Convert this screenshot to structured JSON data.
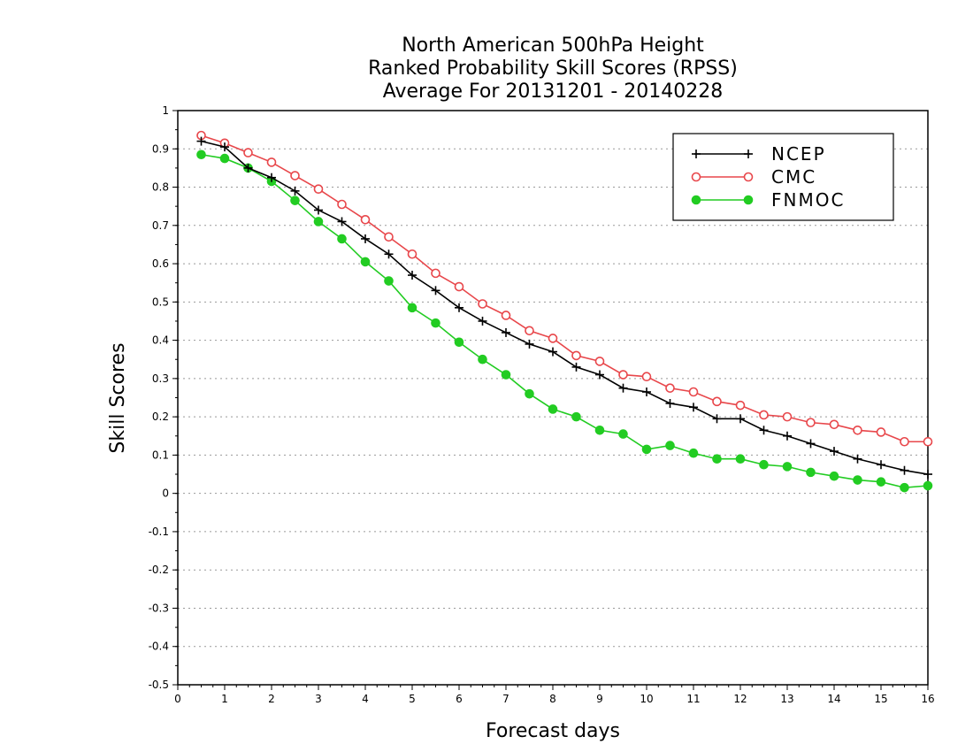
{
  "chart_data": {
    "type": "line",
    "title": [
      "North American 500hPa Height",
      "Ranked Probability Skill Scores (RPSS)",
      "Average For 20131201 - 20140228"
    ],
    "xlabel": "Forecast days",
    "ylabel": "Skill Scores",
    "xlim": [
      0,
      16
    ],
    "ylim": [
      -0.5,
      1
    ],
    "xticks": [
      0,
      1,
      2,
      3,
      4,
      5,
      6,
      7,
      8,
      9,
      10,
      11,
      12,
      13,
      14,
      15,
      16
    ],
    "xtick_labels": [
      "0",
      "1",
      "2",
      "3",
      "4",
      "5",
      "6",
      "7",
      "8",
      "9",
      "10",
      "11",
      "12",
      "13",
      "14",
      "15",
      "16"
    ],
    "yticks": [
      -0.5,
      -0.4,
      -0.3,
      -0.2,
      -0.1,
      0,
      0.1,
      0.2,
      0.3,
      0.4,
      0.5,
      0.6,
      0.7,
      0.8,
      0.9,
      1
    ],
    "ytick_labels": [
      "-0.5",
      "-0.4",
      "-0.3",
      "-0.2",
      "-0.1",
      "0",
      "0.1",
      "0.2",
      "0.3",
      "0.4",
      "0.5",
      "0.6",
      "0.7",
      "0.8",
      "0.9",
      "1"
    ],
    "grid": "horizontal dotted",
    "legend_position": "top-right",
    "x": [
      0.5,
      1,
      1.5,
      2,
      2.5,
      3,
      3.5,
      4,
      4.5,
      5,
      5.5,
      6,
      6.5,
      7,
      7.5,
      8,
      8.5,
      9,
      9.5,
      10,
      10.5,
      11,
      11.5,
      12,
      12.5,
      13,
      13.5,
      14,
      14.5,
      15,
      15.5,
      16
    ],
    "series": [
      {
        "name": "NCEP",
        "color": "#000000",
        "marker": "plus",
        "values": [
          0.92,
          0.905,
          0.85,
          0.825,
          0.79,
          0.74,
          0.71,
          0.665,
          0.625,
          0.57,
          0.53,
          0.485,
          0.45,
          0.42,
          0.39,
          0.37,
          0.33,
          0.31,
          0.275,
          0.265,
          0.235,
          0.225,
          0.195,
          0.195,
          0.165,
          0.15,
          0.13,
          0.11,
          0.09,
          0.075,
          0.06,
          0.05
        ]
      },
      {
        "name": "CMC",
        "color": "#e8474b",
        "marker": "open-circle",
        "values": [
          0.935,
          0.915,
          0.89,
          0.865,
          0.83,
          0.795,
          0.755,
          0.715,
          0.67,
          0.625,
          0.575,
          0.54,
          0.495,
          0.465,
          0.425,
          0.405,
          0.36,
          0.345,
          0.31,
          0.305,
          0.275,
          0.265,
          0.24,
          0.23,
          0.205,
          0.2,
          0.185,
          0.18,
          0.165,
          0.16,
          0.135,
          0.135
        ]
      },
      {
        "name": "FNMOC",
        "color": "#22cc22",
        "marker": "filled-circle",
        "values": [
          0.885,
          0.875,
          0.85,
          0.815,
          0.765,
          0.71,
          0.665,
          0.605,
          0.555,
          0.485,
          0.445,
          0.395,
          0.35,
          0.31,
          0.26,
          0.22,
          0.2,
          0.165,
          0.155,
          0.115,
          0.125,
          0.105,
          0.09,
          0.09,
          0.075,
          0.07,
          0.055,
          0.045,
          0.035,
          0.03,
          0.015,
          0.02
        ]
      }
    ]
  }
}
